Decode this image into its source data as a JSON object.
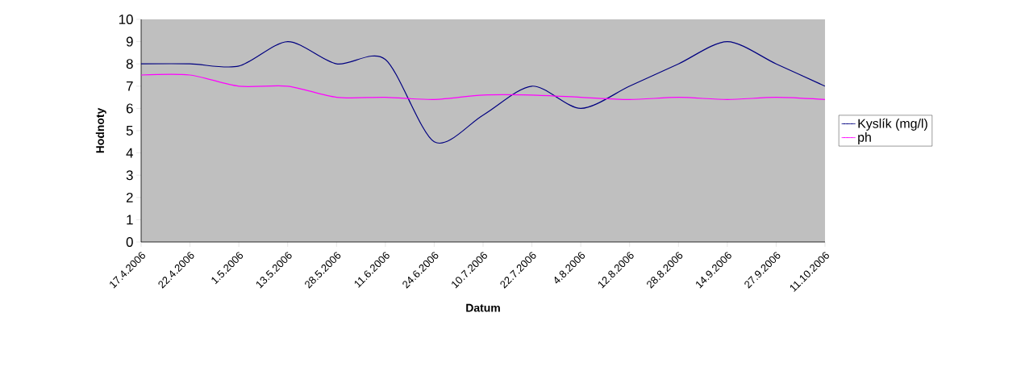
{
  "chart_data": {
    "type": "line",
    "xlabel": "Datum",
    "ylabel": "Hodnoty",
    "categories": [
      "17.4.2006",
      "22.4.2006",
      "1.5.2006",
      "13.5.2006",
      "28.5.2006",
      "11.6.2006",
      "24.6.2006",
      "10.7.2006",
      "22.7.2006",
      "4.8.2006",
      "12.8.2006",
      "28.8.2006",
      "14.9.2006",
      "27.9.2006",
      "11.10.2006"
    ],
    "series": [
      {
        "name": "Kyslík (mg/l)",
        "color": "#000080",
        "values": [
          8,
          8,
          7.9,
          9,
          8,
          8.2,
          4.5,
          5.7,
          7,
          6,
          7,
          8,
          9,
          8,
          7
        ]
      },
      {
        "name": "ph",
        "color": "#ff00ff",
        "values": [
          7.5,
          7.5,
          7,
          7,
          6.5,
          6.5,
          6.4,
          6.6,
          6.6,
          6.5,
          6.4,
          6.5,
          6.4,
          6.5,
          6.4
        ]
      }
    ],
    "ylim": [
      0,
      10
    ],
    "yticks": [
      0,
      1,
      2,
      3,
      4,
      5,
      6,
      7,
      8,
      9,
      10
    ],
    "grid": false,
    "legend": "right",
    "marker": "none",
    "line_style": "solid"
  }
}
